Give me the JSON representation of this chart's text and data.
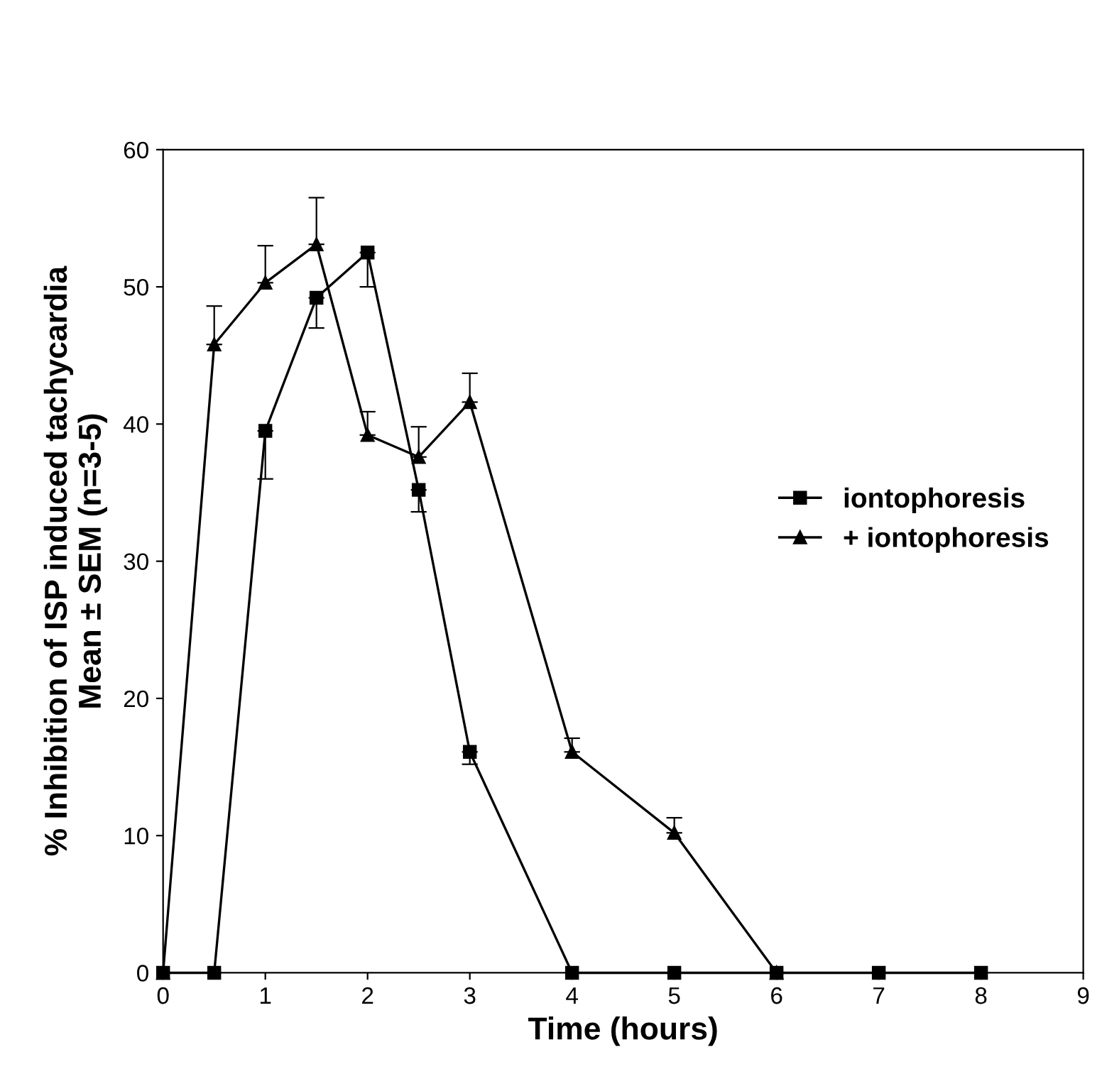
{
  "chart_data": {
    "type": "line",
    "xlabel": "Time (hours)",
    "ylabel": "% Inhibition of ISP induced tachycardia\nMean ± SEM (n=3-5)",
    "xlim": [
      0,
      9
    ],
    "xticks": [
      0,
      1,
      2,
      3,
      4,
      5,
      6,
      7,
      8,
      9
    ],
    "ylim": [
      0,
      60
    ],
    "yticks": [
      0,
      10,
      20,
      30,
      40,
      50,
      60
    ],
    "grid": false,
    "legend": "right",
    "series": [
      {
        "name": "iontophoresis",
        "color": "#000000",
        "marker": "square",
        "x": [
          0,
          0.5,
          1,
          1.5,
          2,
          2.5,
          3,
          4,
          5,
          6,
          7,
          8
        ],
        "values": [
          0,
          0,
          39.5,
          49.2,
          52.5,
          35.2,
          16.1,
          0,
          0,
          0,
          0,
          0
        ],
        "errors": [
          null,
          null,
          [
            36,
            39.5
          ],
          [
            47,
            49.2
          ],
          [
            50,
            52.5
          ],
          [
            33.6,
            35.2
          ],
          [
            15.2,
            16.1
          ],
          null,
          null,
          null,
          null,
          null
        ]
      },
      {
        "name": "+ iontophoresis",
        "color": "#000000",
        "marker": "triangle",
        "x": [
          0,
          0.5,
          1,
          1.5,
          2,
          2.5,
          3,
          4,
          5,
          6
        ],
        "values": [
          0,
          45.8,
          50.3,
          53.1,
          39.2,
          37.6,
          41.6,
          16.1,
          10.2,
          0
        ],
        "errors": [
          null,
          [
            45.8,
            48.6
          ],
          [
            50.3,
            53
          ],
          [
            53.1,
            56.5
          ],
          [
            39.2,
            40.9
          ],
          [
            37.6,
            39.8
          ],
          [
            41.6,
            43.7
          ],
          [
            16.1,
            17.1
          ],
          [
            10.2,
            11.3
          ],
          null
        ]
      }
    ]
  }
}
